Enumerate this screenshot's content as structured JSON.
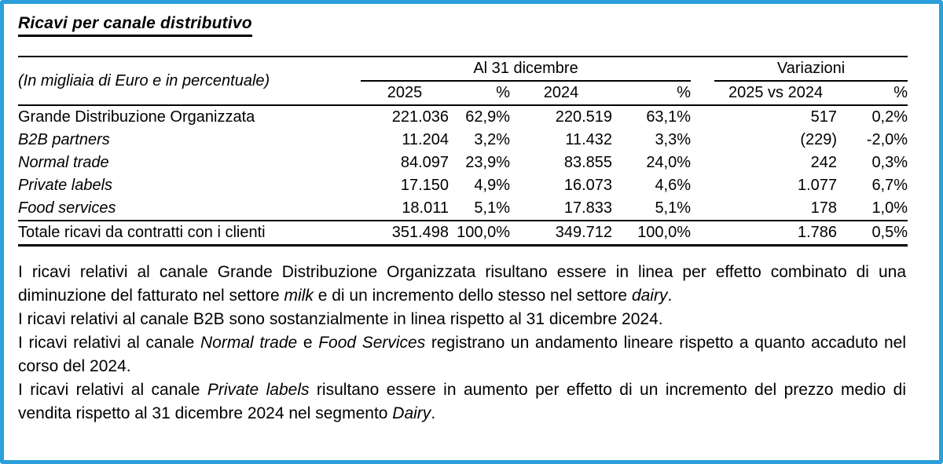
{
  "title": "Ricavi per canale distributivo",
  "colors": {
    "frame_border": "#2ba0da",
    "text": "#000000"
  },
  "table": {
    "unit_note": "(In migliaia di Euro e in percentuale)",
    "group_headers": {
      "period": "Al 31 dicembre",
      "variations": "Variazioni"
    },
    "columns": [
      "2025",
      "%",
      "2024",
      "%",
      "2025 vs 2024",
      "%"
    ],
    "rows": [
      {
        "label": "Grande Distribuzione Organizzata",
        "values": [
          "221.036",
          "62,9%",
          "220.519",
          "63,1%",
          "517",
          "0,2%"
        ]
      },
      {
        "label": "B2B partners",
        "values": [
          "11.204",
          "3,2%",
          "11.432",
          "3,3%",
          "(229)",
          "-2,0%"
        ]
      },
      {
        "label": "Normal trade",
        "values": [
          "84.097",
          "23,9%",
          "83.855",
          "24,0%",
          "242",
          "0,3%"
        ]
      },
      {
        "label": "Private labels",
        "values": [
          "17.150",
          "4,9%",
          "16.073",
          "4,6%",
          "1.077",
          "6,7%"
        ]
      },
      {
        "label": "Food services",
        "values": [
          "18.011",
          "5,1%",
          "17.833",
          "5,1%",
          "178",
          "1,0%"
        ]
      }
    ],
    "total": {
      "label": "Totale ricavi da contratti con i clienti",
      "values": [
        "351.498",
        "100,0%",
        "349.712",
        "100,0%",
        "1.786",
        "0,5%"
      ]
    }
  },
  "paragraphs": [
    {
      "segments": [
        {
          "t": "I ricavi relativi al canale Grande Distribuzione Organizzata risultano essere in linea per effetto combinato di una diminuzione del fatturato nel settore ",
          "i": false
        },
        {
          "t": "milk",
          "i": true
        },
        {
          "t": " e di un incremento dello stesso nel settore ",
          "i": false
        },
        {
          "t": "dairy",
          "i": true
        },
        {
          "t": ".",
          "i": false
        }
      ]
    },
    {
      "segments": [
        {
          "t": "I ricavi relativi al canale B2B sono sostanzialmente in linea rispetto al 31 dicembre 2024.",
          "i": false
        }
      ]
    },
    {
      "segments": [
        {
          "t": "I ricavi relativi al canale ",
          "i": false
        },
        {
          "t": "Normal trade",
          "i": true
        },
        {
          "t": " e ",
          "i": false
        },
        {
          "t": "Food Services",
          "i": true
        },
        {
          "t": " registrano un andamento lineare rispetto a quanto accaduto nel corso del 2024.",
          "i": false
        }
      ]
    },
    {
      "segments": [
        {
          "t": "I ricavi relativi al canale ",
          "i": false
        },
        {
          "t": "Private labels",
          "i": true
        },
        {
          "t": " risultano essere in aumento per effetto di un incremento del prezzo medio di vendita rispetto al 31 dicembre 2024 nel segmento ",
          "i": false
        },
        {
          "t": "Dairy",
          "i": true
        },
        {
          "t": ".",
          "i": false
        }
      ]
    }
  ]
}
